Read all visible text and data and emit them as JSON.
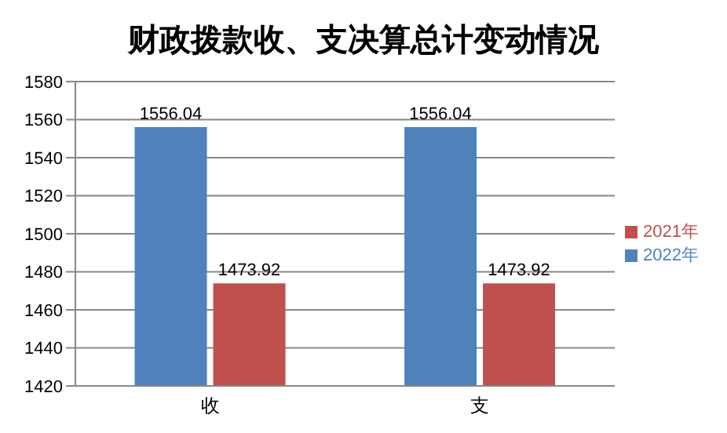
{
  "chart_data": {
    "type": "bar",
    "title": "财政拨款收、支决算总计变动情况",
    "categories": [
      "收",
      "支"
    ],
    "series": [
      {
        "name": "2022年",
        "color": "#4f81bd",
        "values": [
          1556.04,
          1556.04
        ]
      },
      {
        "name": "2021年",
        "color": "#c0504d",
        "values": [
          1473.92,
          1473.92
        ]
      }
    ],
    "ylim": [
      1420,
      1580
    ],
    "yticks": [
      1420,
      1440,
      1460,
      1480,
      1500,
      1520,
      1540,
      1560,
      1580
    ],
    "grid": "y",
    "legend": "right",
    "data_labels": true
  }
}
